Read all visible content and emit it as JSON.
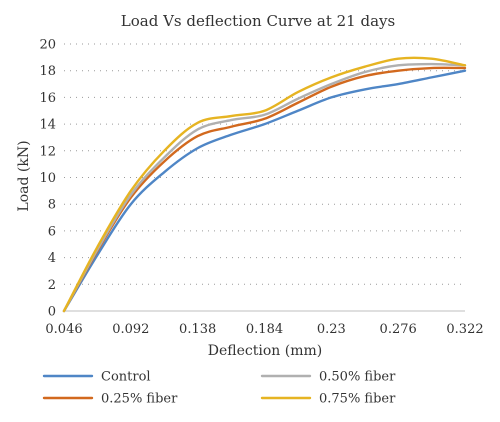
{
  "chart_data": {
    "type": "line",
    "title": "Load Vs deflection Curve at 21 days",
    "xlabel": "Deflection (mm)",
    "ylabel": "Load (kN)",
    "x_ticks": [
      "0.046",
      "0.092",
      "0.138",
      "0.184",
      "0.23",
      "0.276",
      "0.322"
    ],
    "y_ticks": [
      "0",
      "2",
      "4",
      "6",
      "8",
      "10",
      "12",
      "14",
      "16",
      "18",
      "20"
    ],
    "xlim": [
      0.046,
      0.322
    ],
    "ylim": [
      0,
      20
    ],
    "grid": "horizontal dotted",
    "legend_position": "bottom",
    "series": [
      {
        "name": "Control",
        "color": "#4f86c6",
        "x": [
          0.046,
          0.069,
          0.092,
          0.115,
          0.138,
          0.161,
          0.184,
          0.207,
          0.23,
          0.253,
          0.276,
          0.299,
          0.322
        ],
        "y": [
          0,
          4.2,
          8.0,
          10.4,
          12.2,
          13.2,
          14.0,
          15.0,
          16.0,
          16.6,
          17.0,
          17.5,
          18.0
        ]
      },
      {
        "name": "0.25% fiber",
        "color": "#d2691e",
        "x": [
          0.046,
          0.069,
          0.092,
          0.115,
          0.138,
          0.161,
          0.184,
          0.207,
          0.23,
          0.253,
          0.276,
          0.299,
          0.322
        ],
        "y": [
          0,
          4.5,
          8.5,
          11.2,
          13.1,
          13.8,
          14.4,
          15.6,
          16.8,
          17.6,
          18.0,
          18.2,
          18.2
        ]
      },
      {
        "name": "0.50% fiber",
        "color": "#b0b0b0",
        "x": [
          0.046,
          0.069,
          0.092,
          0.115,
          0.138,
          0.161,
          0.184,
          0.207,
          0.23,
          0.253,
          0.276,
          0.299,
          0.322
        ],
        "y": [
          0,
          4.6,
          8.7,
          11.5,
          13.6,
          14.3,
          14.7,
          15.9,
          17.0,
          17.9,
          18.4,
          18.5,
          18.4
        ]
      },
      {
        "name": "0.75% fiber",
        "color": "#e6b422",
        "x": [
          0.046,
          0.069,
          0.092,
          0.115,
          0.138,
          0.161,
          0.184,
          0.207,
          0.23,
          0.253,
          0.276,
          0.299,
          0.322
        ],
        "y": [
          0,
          4.8,
          9.0,
          12.0,
          14.1,
          14.6,
          15.0,
          16.4,
          17.5,
          18.3,
          18.9,
          18.9,
          18.4
        ]
      }
    ],
    "legend_order": [
      "Control",
      "0.50% fiber",
      "0.25% fiber",
      "0.75% fiber"
    ]
  }
}
